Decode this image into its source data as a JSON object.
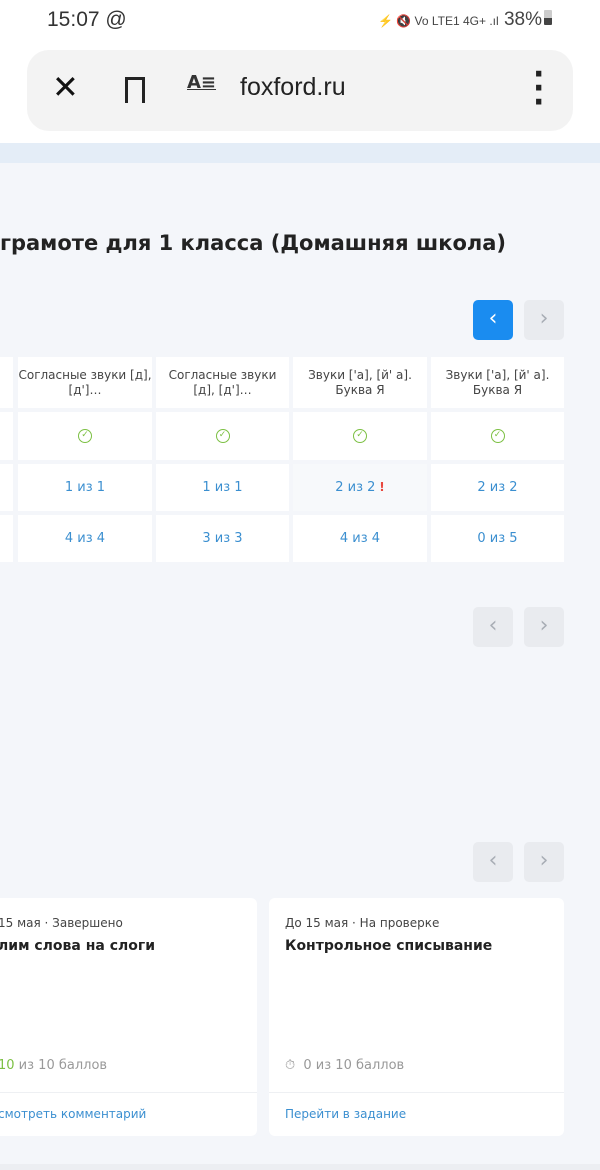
{
  "status_bar": {
    "time": "15:07",
    "at_icon": "@",
    "icons": "⚡ 🔇 Vo LTE1 4G+ .ıl",
    "battery": "38%"
  },
  "browser": {
    "close": "✕",
    "url": "foxford.ru",
    "reader_icon": "A≡",
    "menu": "⋮"
  },
  "page": {
    "title": "грамоте для 1 класса (Домашняя школа)"
  },
  "nav_prev": "‹",
  "nav_next": "›",
  "table": {
    "columns": [
      "Согласные звуки [д], [д']…",
      "Согласные звуки [д], [д']…",
      "Звуки ['а], [й' а]. Буква Я",
      "Звуки ['а], [й' а]. Буква Я"
    ],
    "attendance": [
      "✓",
      "✓",
      "✓",
      "✓"
    ],
    "row2": [
      {
        "value": "1 из 1"
      },
      {
        "value": "1 из 1"
      },
      {
        "value": "2 из 2",
        "warning": "!"
      },
      {
        "value": "2 из 2"
      }
    ],
    "row3": [
      "4 из 4",
      "3 из 3",
      "4 из 4",
      "0 из 5"
    ]
  },
  "cards": [
    {
      "meta": "15 мая · Завершено",
      "title": "лим слова на слоги",
      "score_value": "10",
      "score_rest": " из 10 баллов",
      "action": "смотреть комментарий"
    },
    {
      "meta": "До 15 мая · На проверке",
      "title": "Контрольное списывание",
      "score_icon": "stopwatch-icon",
      "score_rest": "0 из 10 баллов",
      "action": "Перейти в задание"
    }
  ],
  "colors": {
    "accent": "#1a8cf0",
    "link": "#3b8fd0",
    "success": "#7cc043",
    "warning": "#e8473d"
  }
}
